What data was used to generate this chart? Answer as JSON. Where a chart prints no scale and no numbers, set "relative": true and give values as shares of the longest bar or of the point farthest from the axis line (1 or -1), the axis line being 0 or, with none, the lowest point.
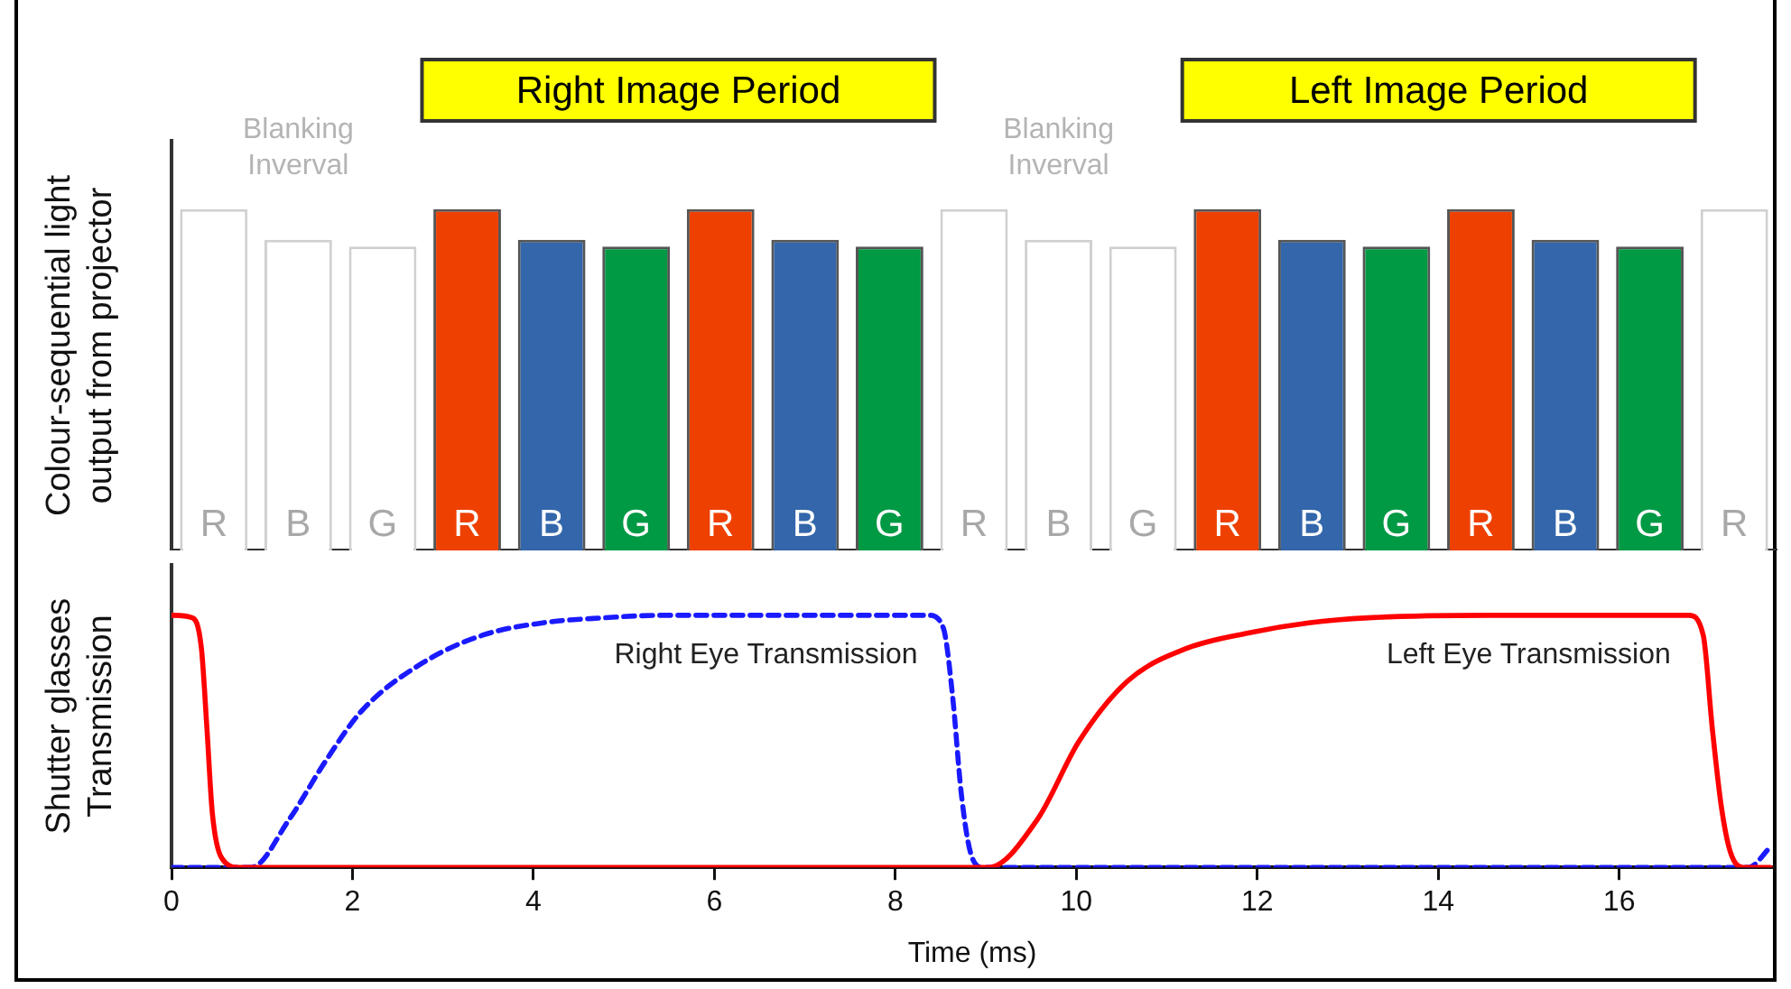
{
  "chart_data": [
    {
      "type": "bar",
      "ylabel": "Colour-sequential light\noutput from projector",
      "relative": true,
      "categories": [
        "R",
        "B",
        "G",
        "R",
        "B",
        "G",
        "R",
        "B",
        "G",
        "R",
        "B",
        "G",
        "R",
        "B",
        "G",
        "R",
        "B",
        "G",
        "R"
      ],
      "values": [
        1,
        0.91,
        0.89,
        1,
        0.91,
        0.89,
        1,
        0.91,
        0.89,
        1,
        0.91,
        0.89,
        1,
        0.91,
        0.89,
        1,
        0.91,
        0.89,
        1
      ],
      "colors": [
        "#ffffff",
        "#ffffff",
        "#ffffff",
        "#ee4000",
        "#3366aa",
        "#009944",
        "#ee4000",
        "#3366aa",
        "#009944",
        "#ffffff",
        "#ffffff",
        "#ffffff",
        "#ee4000",
        "#3366aa",
        "#009944",
        "#ee4000",
        "#3366aa",
        "#009944",
        "#ffffff"
      ],
      "annotations": [
        "Right Image Period",
        "Left Image Period",
        "Blanking\nInverval",
        "Blanking\nInverval"
      ],
      "grid": false,
      "legend": false
    },
    {
      "type": "line",
      "xlabel": "Time (ms)",
      "ylabel": "Shutter glasses\nTransmission",
      "relative": true,
      "xlim": [
        0,
        17.7
      ],
      "xticks": [
        0,
        2,
        4,
        6,
        8,
        10,
        12,
        14,
        16
      ],
      "grid": false,
      "legend": false,
      "marker": "none",
      "series": [
        {
          "name": "Left Eye Transmission",
          "color": "#ff0000",
          "line_style": "solid",
          "x": [
            0,
            0.23,
            0.33,
            0.39,
            0.45,
            0.55,
            0.75,
            9.03,
            9.57,
            10.03,
            10.57,
            11.23,
            11.9,
            12.57,
            13.23,
            14.57,
            16.77,
            16.93,
            17.03,
            17.13,
            17.23,
            17.37,
            17.67
          ],
          "values": [
            1,
            0.99,
            0.87,
            0.56,
            0.22,
            0.04,
            0,
            0,
            0.19,
            0.5,
            0.74,
            0.87,
            0.93,
            0.97,
            0.99,
            1,
            1,
            0.92,
            0.55,
            0.24,
            0.06,
            0,
            0
          ]
        },
        {
          "name": "Right Eye Transmission",
          "color": "#1a1aff",
          "line_style": "dashed",
          "x": [
            0,
            0.88,
            1.3,
            1.7,
            2.1,
            2.77,
            3.43,
            4.1,
            4.77,
            5.43,
            8.37,
            8.53,
            8.63,
            8.73,
            8.83,
            8.97,
            17.43,
            17.67
          ],
          "values": [
            0,
            0,
            0.19,
            0.42,
            0.62,
            0.81,
            0.92,
            0.97,
            0.99,
            1,
            1,
            0.95,
            0.69,
            0.29,
            0.06,
            0,
            0,
            0.08
          ]
        }
      ]
    }
  ]
}
